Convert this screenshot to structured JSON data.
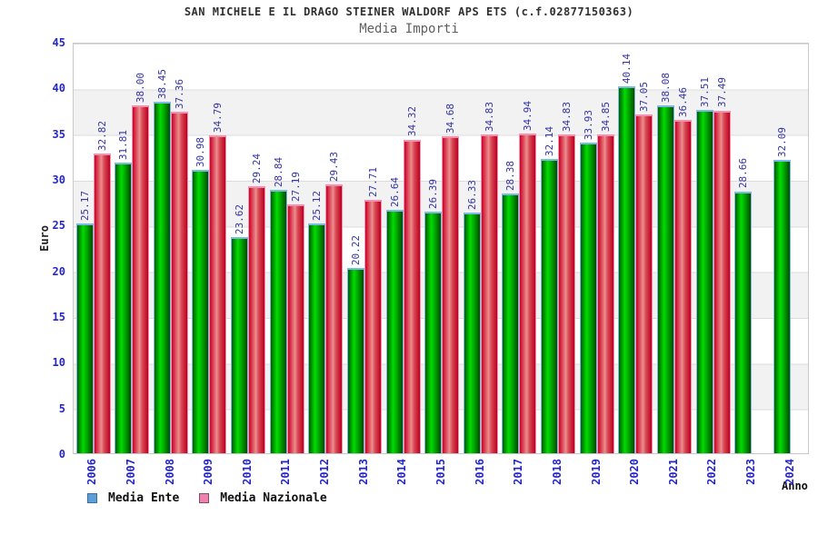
{
  "title": "SAN MICHELE E IL DRAGO STEINER WALDORF APS ETS (c.f.02877150363)",
  "subtitle": "Media Importi",
  "chart_data": {
    "type": "bar",
    "categories": [
      "2006",
      "2007",
      "2008",
      "2009",
      "2010",
      "2011",
      "2012",
      "2013",
      "2014",
      "2015",
      "2016",
      "2017",
      "2018",
      "2019",
      "2020",
      "2021",
      "2022",
      "2023",
      "2024"
    ],
    "series": [
      {
        "name": "Media Ente",
        "bar_color": "#00c800",
        "legend_color": "#5c9fd6",
        "values": [
          25.17,
          31.81,
          38.45,
          30.98,
          23.62,
          28.84,
          25.12,
          20.22,
          26.64,
          26.39,
          26.33,
          28.38,
          32.14,
          33.93,
          40.14,
          38.08,
          37.51,
          28.66,
          32.09
        ]
      },
      {
        "name": "Media Nazionale",
        "bar_color": "#dc1e32",
        "legend_color": "#ee82ae",
        "values": [
          32.82,
          38.0,
          37.36,
          34.79,
          29.24,
          27.19,
          29.43,
          27.71,
          34.32,
          34.68,
          34.83,
          34.94,
          34.83,
          34.85,
          37.05,
          36.46,
          37.49,
          null,
          null
        ]
      }
    ],
    "xlabel": "Anno",
    "ylabel": "Euro",
    "ylim": [
      0,
      45
    ],
    "yticks": [
      0,
      5,
      10,
      15,
      20,
      25,
      30,
      35,
      40,
      45
    ],
    "grid": "horizontal gridlines every 5, alternating white/gray bands",
    "legend_position": "bottom-left",
    "value_labels": "rotated 90deg above each bar, two decimals",
    "axis_label_color": "#2626c8",
    "value_label_color": "#3434a4"
  }
}
